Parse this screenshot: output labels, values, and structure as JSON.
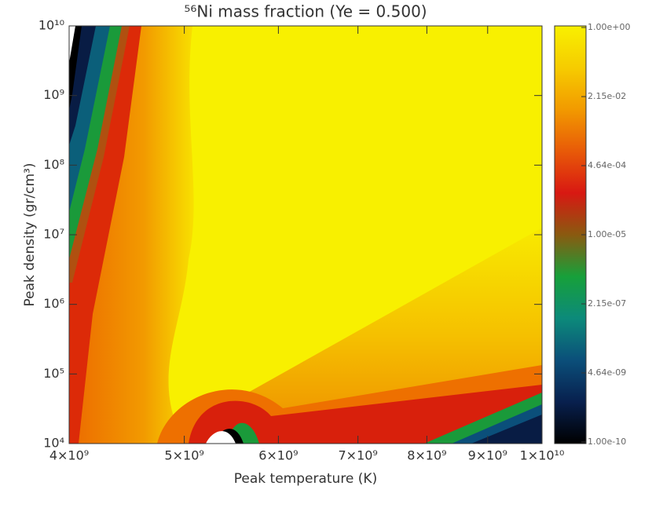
{
  "chart_data": {
    "type": "heatmap",
    "title": "⁵⁶Ni mass fraction (Ye = 0.500)",
    "x_label": "Peak temperature (K)",
    "y_label": "Peak density (gr/cm³)",
    "xlim": [
      4000000000,
      10000000000
    ],
    "xlog": true,
    "xticks": [
      {
        "value": 4000000000,
        "label": "4×10⁹"
      },
      {
        "value": 5000000000,
        "label": "5×10⁹"
      },
      {
        "value": 6000000000,
        "label": "6×10⁹"
      },
      {
        "value": 7000000000,
        "label": "7×10⁹"
      },
      {
        "value": 8000000000,
        "label": "8×10⁹"
      },
      {
        "value": 9000000000,
        "label": "9×10⁹"
      },
      {
        "value": 10000000000,
        "label": "1×10¹⁰"
      }
    ],
    "ylim": [
      10000,
      10000000000
    ],
    "ylog": true,
    "yticks": [
      {
        "value": 10000,
        "label": "10⁴"
      },
      {
        "value": 100000,
        "label": "10⁵"
      },
      {
        "value": 1000000,
        "label": "10⁶"
      },
      {
        "value": 10000000,
        "label": "10⁷"
      },
      {
        "value": 100000000,
        "label": "10⁸"
      },
      {
        "value": 1000000000,
        "label": "10⁹"
      },
      {
        "value": 10000000000,
        "label": "10¹⁰"
      }
    ],
    "colorbar": {
      "lim": [
        1e-10,
        1
      ],
      "log": true,
      "colors": [
        "#000000",
        "#08204e",
        "#0b4f7a",
        "#0c8a7a",
        "#17a03a",
        "#8a5a10",
        "#d81812",
        "#e85a08",
        "#f29a00",
        "#f6cc00",
        "#f8f000"
      ],
      "ticks": [
        {
          "value": 1,
          "label": "1.00e+00"
        },
        {
          "value": 0.0215,
          "label": "2.15e-02"
        },
        {
          "value": 0.000464,
          "label": "4.64e-04"
        },
        {
          "value": 1e-05,
          "label": "1.00e-05"
        },
        {
          "value": 2.15e-07,
          "label": "2.15e-07"
        },
        {
          "value": 4.64e-09,
          "label": "4.64e-09"
        },
        {
          "value": 1e-10,
          "label": "1.00e-10"
        }
      ]
    }
  }
}
